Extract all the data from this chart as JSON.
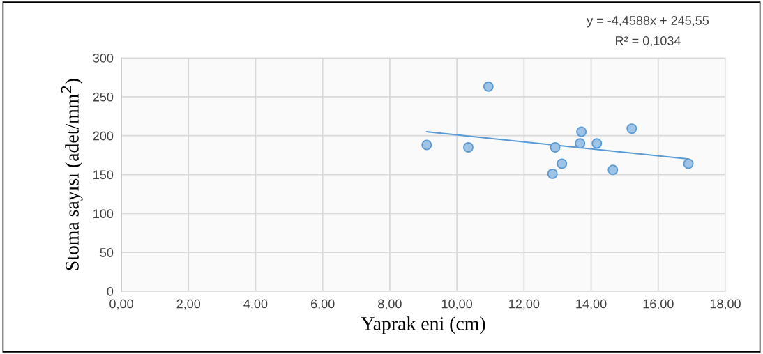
{
  "chart_data": {
    "type": "scatter",
    "xlabel": "Yaprak eni (cm)",
    "ylabel": "Stoma sayısı (adet/mm$^{2}$)",
    "series": [
      {
        "marker": "circle",
        "color": "#9dc3e6",
        "x": [
          9.1,
          10.34,
          10.94,
          12.85,
          12.93,
          13.13,
          13.67,
          13.71,
          14.17,
          14.65,
          15.21,
          16.9
        ],
        "values": [
          188,
          185,
          263,
          151,
          185,
          164,
          190,
          205,
          190,
          156,
          209,
          164
        ]
      },
      {
        "type": "line",
        "color": "#5b9bd5",
        "x": [
          9.1,
          16.9
        ],
        "values": [
          205,
          170
        ]
      }
    ],
    "annotations": [
      "y = -4,4588x + 245,55",
      "R² = 0,1034"
    ],
    "xlim": [
      0,
      18
    ],
    "ylim": [
      0,
      300
    ],
    "xticks": [
      {
        "value": 0,
        "label": "0,00"
      },
      {
        "value": 2,
        "label": "2,00"
      },
      {
        "value": 4,
        "label": "4,00"
      },
      {
        "value": 6,
        "label": "6,00"
      },
      {
        "value": 8,
        "label": "8,00"
      },
      {
        "value": 10,
        "label": "10,00"
      },
      {
        "value": 12,
        "label": "12,00"
      },
      {
        "value": 14,
        "label": "14,00"
      },
      {
        "value": 16,
        "label": "16,00"
      },
      {
        "value": 18,
        "label": "18,00"
      }
    ],
    "yticks": [
      0,
      50,
      100,
      150,
      200,
      250,
      300
    ],
    "grid": true
  }
}
